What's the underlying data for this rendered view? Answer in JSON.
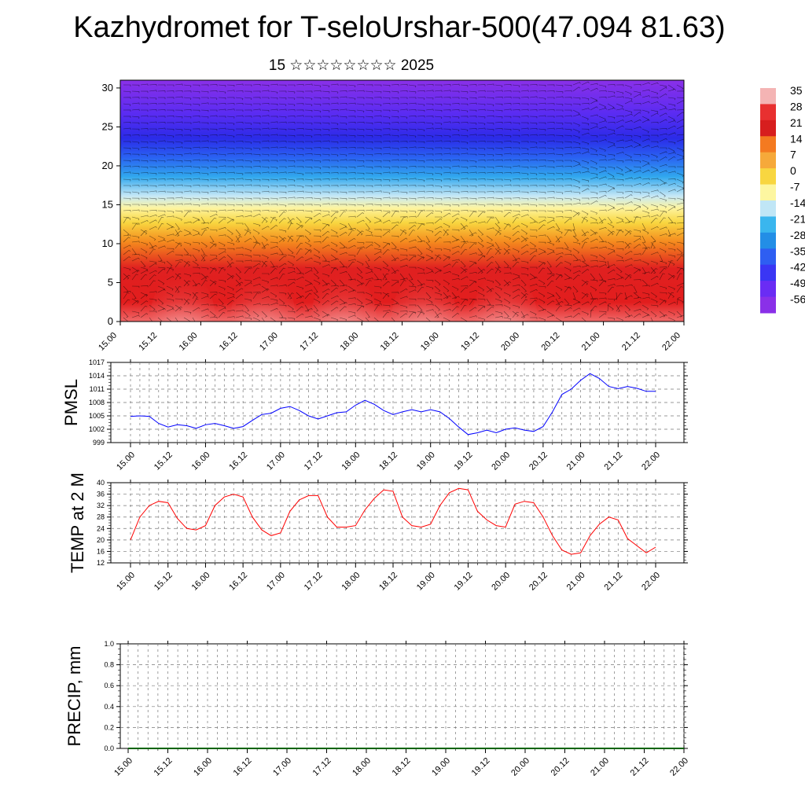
{
  "title": "Kazhydromet for T-seloUrshar-500(47.094 81.63)",
  "subtitle": "15 ☆☆☆☆☆☆☆☆ 2025",
  "chart_data": [
    {
      "type": "heatmap",
      "name": "temperature-wind-profile",
      "y_ticks": [
        "0",
        "5",
        "10",
        "15",
        "20",
        "25",
        "30"
      ],
      "ylim": [
        0,
        31
      ],
      "x_ticks": [
        "15.00",
        "15.12",
        "16.00",
        "16.12",
        "17.00",
        "17.12",
        "18.00",
        "18.12",
        "19.00",
        "19.12",
        "20.00",
        "20.12",
        "21.00",
        "21.12",
        "22.00"
      ],
      "colorbar_labels": [
        "35",
        "28",
        "21",
        "14",
        "7",
        "0",
        "-7",
        "-14",
        "-21",
        "-28",
        "-35",
        "-42",
        "-49",
        "-56"
      ],
      "colors": [
        "#f4b4b4",
        "#e83030",
        "#d71e1e",
        "#f47a20",
        "#f6a93a",
        "#f8d640",
        "#fdf6a0",
        "#c0e6f6",
        "#3ab6ee",
        "#238ee6",
        "#2e5ef2",
        "#3a36f4",
        "#6a2cf4",
        "#8a30e8"
      ],
      "annotation": "wind barbs overlay"
    },
    {
      "type": "line",
      "ylabel": "PMSL",
      "ylim": [
        999,
        1017
      ],
      "y_ticks": [
        "999",
        "1002",
        "1005",
        "1008",
        "1011",
        "1014",
        "1017"
      ],
      "x_ticks": [
        "15.00",
        "15.12",
        "16.00",
        "16.12",
        "17.00",
        "17.12",
        "18.00",
        "18.12",
        "19.00",
        "19.12",
        "20.00",
        "20.12",
        "21.00",
        "21.12",
        "22.00"
      ],
      "color": "#0000ff",
      "values": [
        1004.9,
        1005,
        1004.9,
        1003.3,
        1002.5,
        1003,
        1002.8,
        1002.2,
        1003,
        1003.3,
        1002.8,
        1002.2,
        1002.6,
        1004,
        1005.3,
        1005.6,
        1006.7,
        1007.1,
        1006.2,
        1005,
        1004.3,
        1005,
        1005.7,
        1005.9,
        1007.4,
        1008.5,
        1007.6,
        1006.2,
        1005.3,
        1005.9,
        1006.4,
        1005.9,
        1006.4,
        1005.9,
        1004.4,
        1002.5,
        1000.8,
        1001.2,
        1001.8,
        1001.2,
        1002,
        1002.3,
        1001.8,
        1001.5,
        1002.6,
        1005.9,
        1009.8,
        1011,
        1013,
        1014.5,
        1013.4,
        1011.6,
        1011.1,
        1011.6,
        1011.2,
        1010.5,
        1010.5
      ]
    },
    {
      "type": "line",
      "ylabel": "TEMP at 2 M",
      "ylim": [
        12,
        40
      ],
      "y_ticks": [
        "12",
        "16",
        "20",
        "24",
        "28",
        "32",
        "36",
        "40"
      ],
      "x_ticks": [
        "15.00",
        "15.12",
        "16.00",
        "16.12",
        "17.00",
        "17.12",
        "18.00",
        "18.12",
        "19.00",
        "19.12",
        "20.00",
        "20.12",
        "21.00",
        "21.12",
        "22.00"
      ],
      "color": "#ff0000",
      "values": [
        20,
        28,
        32,
        33.5,
        33,
        27.5,
        24,
        23.5,
        25,
        32,
        35,
        36,
        35,
        28,
        23.5,
        21.5,
        22.5,
        30,
        34,
        35.5,
        35.5,
        28,
        24.5,
        24.5,
        25,
        30.5,
        34.5,
        37.5,
        37,
        28,
        25,
        24.5,
        25.5,
        32,
        36.5,
        38,
        37.5,
        30,
        27,
        25,
        24.5,
        32.5,
        33.5,
        33,
        28,
        21.5,
        16.5,
        15,
        15.5,
        21.5,
        25.5,
        28,
        27,
        20.5,
        18,
        15.5,
        17.5
      ]
    },
    {
      "type": "line",
      "ylabel": "PRECIP, mm",
      "ylim": [
        0,
        1
      ],
      "y_ticks": [
        "0.0",
        "0.2",
        "0.4",
        "0.6",
        "0.8",
        "1.0"
      ],
      "x_ticks": [
        "15.00",
        "15.12",
        "16.00",
        "16.12",
        "17.00",
        "17.12",
        "18.00",
        "18.12",
        "19.00",
        "19.12",
        "20.00",
        "20.12",
        "21.00",
        "21.12",
        "22.00"
      ],
      "color": "#006400",
      "values": [
        0,
        0,
        0,
        0,
        0,
        0,
        0,
        0,
        0,
        0,
        0,
        0,
        0,
        0,
        0,
        0,
        0,
        0,
        0,
        0,
        0,
        0,
        0,
        0,
        0,
        0,
        0,
        0,
        0,
        0,
        0,
        0,
        0,
        0,
        0,
        0,
        0,
        0,
        0,
        0,
        0,
        0,
        0,
        0,
        0,
        0,
        0,
        0,
        0,
        0,
        0,
        0,
        0,
        0,
        0,
        0,
        0
      ]
    }
  ]
}
